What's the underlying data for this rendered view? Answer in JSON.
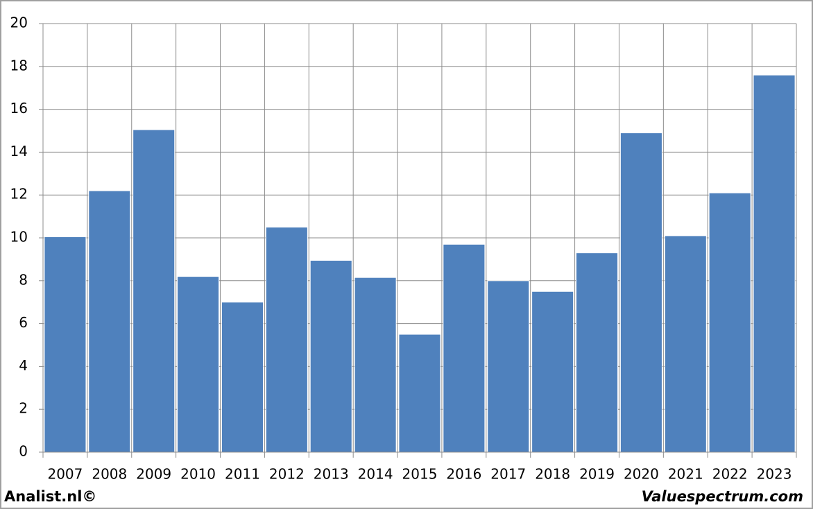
{
  "chart_data": {
    "type": "bar",
    "categories": [
      "2007",
      "2008",
      "2009",
      "2010",
      "2011",
      "2012",
      "2013",
      "2014",
      "2015",
      "2016",
      "2017",
      "2018",
      "2019",
      "2020",
      "2021",
      "2022",
      "2023"
    ],
    "values": [
      10.05,
      12.2,
      15.05,
      8.2,
      7.0,
      10.5,
      8.95,
      8.15,
      5.5,
      9.7,
      8.0,
      7.5,
      9.3,
      14.9,
      10.1,
      12.1,
      17.6
    ],
    "color": "#4f81bd",
    "ylim": [
      0,
      20
    ],
    "yticks": [
      0,
      2,
      4,
      6,
      8,
      10,
      12,
      14,
      16,
      18,
      20
    ],
    "grid": true,
    "footer_left": "Analist.nl©",
    "footer_right": "Valuespectrum.com"
  }
}
